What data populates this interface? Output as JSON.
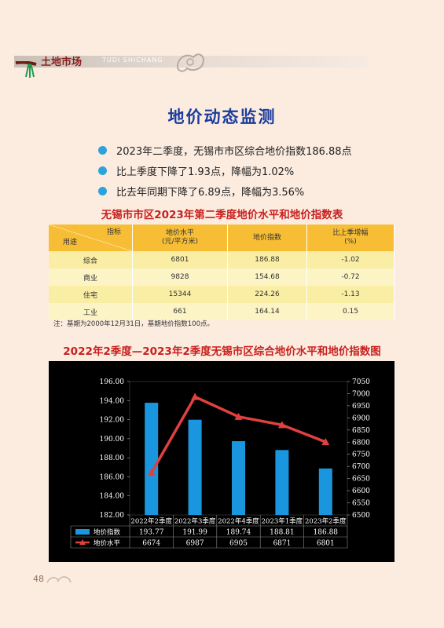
{
  "header": {
    "magazine_cn": "土地市场",
    "magazine_en": "TUDI SHICHANG"
  },
  "title": "地价动态监测",
  "bullets": [
    "2023年二季度，无锡市市区综合地价指数186.88点",
    "比上季度下降了1.93点，降幅为1.02%",
    "比去年同期下降了6.89点，降幅为3.56%"
  ],
  "table": {
    "title": "无锡市市区2023年第二季度地价水平和地价指数表",
    "corner_top": "指标",
    "corner_bottom": "用途",
    "headers": [
      [
        "地价水平",
        "(元/平方米)"
      ],
      [
        "地价指数",
        ""
      ],
      [
        "比上季增幅",
        "(%)"
      ]
    ],
    "rows": [
      [
        "综合",
        "6801",
        "186.88",
        "-1.02"
      ],
      [
        "商业",
        "9828",
        "154.68",
        "-0.72"
      ],
      [
        "住宅",
        "15344",
        "224.26",
        "-1.13"
      ],
      [
        "工业",
        "661",
        "164.14",
        "0.15"
      ]
    ],
    "note": "注：基期为2000年12月31日，基期地价指数100点。"
  },
  "chart_data": {
    "type": "bar",
    "title": "2022年2季度—2023年2季度无锡市区综合地价水平和地价指数图",
    "categories": [
      "2022年2季度",
      "2022年3季度",
      "2022年4季度",
      "2023年1季度",
      "2023年2季度"
    ],
    "series": [
      {
        "name": "地价指数",
        "type": "bar",
        "axis": "left",
        "values": [
          193.77,
          191.99,
          189.74,
          188.81,
          186.88
        ],
        "labels": [
          "193.77",
          "191.99",
          "189.74",
          "188.81",
          "186.88"
        ],
        "color": "#1a96df"
      },
      {
        "name": "地价水平",
        "type": "line",
        "axis": "right",
        "values": [
          6674,
          6987,
          6905,
          6871,
          6801
        ],
        "labels": [
          "6674",
          "6987",
          "6905",
          "6871",
          "6801"
        ],
        "color": "#e0403f"
      }
    ],
    "ylim": [
      182,
      196
    ],
    "y2lim": [
      6500,
      7050
    ],
    "yticks": [
      "182.00",
      "184.00",
      "186.00",
      "188.00",
      "190.00",
      "192.00",
      "194.00",
      "196.00"
    ],
    "y2ticks": [
      "6500",
      "6550",
      "6600",
      "6650",
      "6700",
      "6750",
      "6800",
      "6850",
      "6900",
      "6950",
      "7000",
      "7050"
    ],
    "grid": false,
    "legend": "data-table"
  },
  "page_number": "48",
  "colors": {
    "background": "#fcece0",
    "title_blue": "#1b3c9c",
    "accent_red": "#c8201e",
    "bullet_blue": "#2ba4dc",
    "table_header": "#f7be35",
    "table_body": "#faeea5"
  }
}
